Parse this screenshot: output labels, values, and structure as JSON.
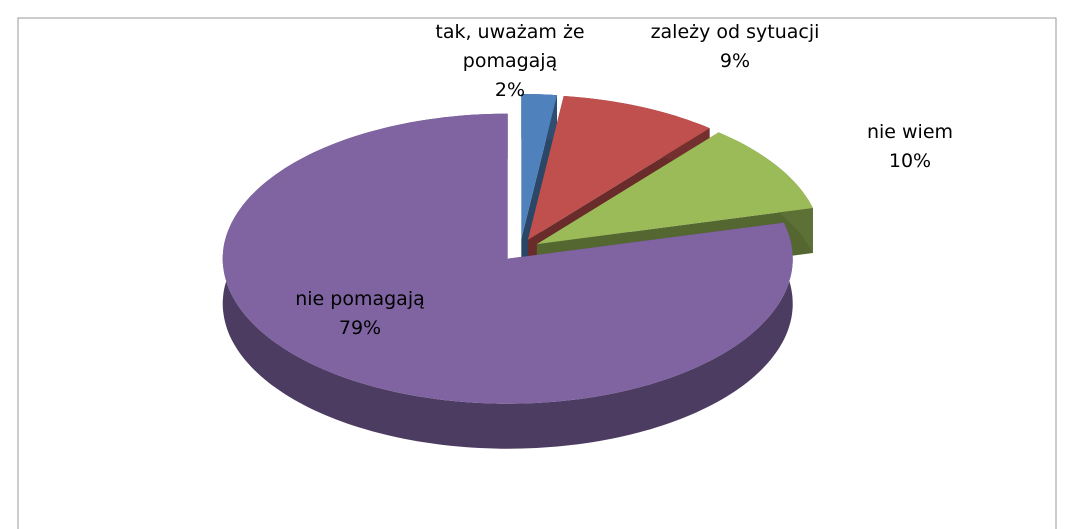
{
  "chart_data": {
    "type": "pie",
    "categories": [
      "tak, uważam że pomagają",
      "zależy od sytuacji",
      "nie wiem",
      "nie pomagają"
    ],
    "values": [
      2,
      9,
      10,
      79
    ],
    "value_labels": [
      "2%",
      "9%",
      "10%",
      "79%"
    ],
    "colors": [
      "#4f81bd",
      "#c0504d",
      "#9bbb59",
      "#8064a2"
    ]
  }
}
